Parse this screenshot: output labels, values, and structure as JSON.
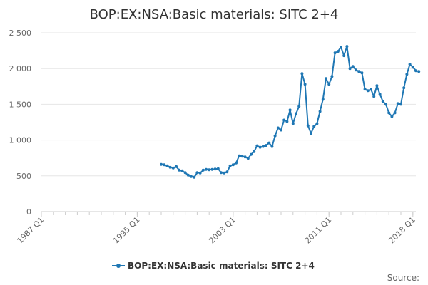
{
  "chart_data": {
    "type": "line",
    "title": "BOP:EX:NSA:Basic materials: SITC 2+4",
    "xlabel": "",
    "ylabel": "",
    "x_tick_labels": [
      "1987 Q1",
      "1995 Q1",
      "2003 Q1",
      "2011 Q1",
      "2018 Q1"
    ],
    "x_tick_years": [
      1987,
      1995,
      2003,
      2011,
      2018
    ],
    "y_tick_labels": [
      "0",
      "500",
      "1 000",
      "1 500",
      "2 000",
      "2 500"
    ],
    "y_tick_values": [
      0,
      500,
      1000,
      1500,
      2000,
      2500
    ],
    "xlim": [
      1987,
      2018.25
    ],
    "ylim": [
      0,
      2500
    ],
    "grid": true,
    "legend_position": "bottom-center",
    "series": [
      {
        "name": "BOP:EX:NSA:Basic materials: SITC 2+4",
        "color": "#1f77b4",
        "start": {
          "year": 1997,
          "quarter": 1
        },
        "values": [
          660,
          655,
          640,
          620,
          610,
          630,
          580,
          570,
          545,
          510,
          490,
          480,
          545,
          540,
          580,
          590,
          585,
          590,
          595,
          600,
          545,
          540,
          555,
          640,
          655,
          680,
          780,
          775,
          765,
          745,
          800,
          840,
          920,
          900,
          910,
          925,
          960,
          910,
          1060,
          1170,
          1140,
          1280,
          1260,
          1420,
          1230,
          1370,
          1470,
          1930,
          1780,
          1200,
          1095,
          1190,
          1230,
          1400,
          1570,
          1860,
          1780,
          1890,
          2220,
          2240,
          2300,
          2180,
          2310,
          2000,
          2030,
          1980,
          1960,
          1940,
          1710,
          1690,
          1710,
          1610,
          1760,
          1640,
          1540,
          1500,
          1380,
          1330,
          1380,
          1510,
          1500,
          1730,
          1920,
          2060,
          2020,
          1970,
          1960
        ]
      }
    ],
    "legend_label": "BOP:EX:NSA:Basic materials: SITC 2+4",
    "source_label": "Source:"
  }
}
